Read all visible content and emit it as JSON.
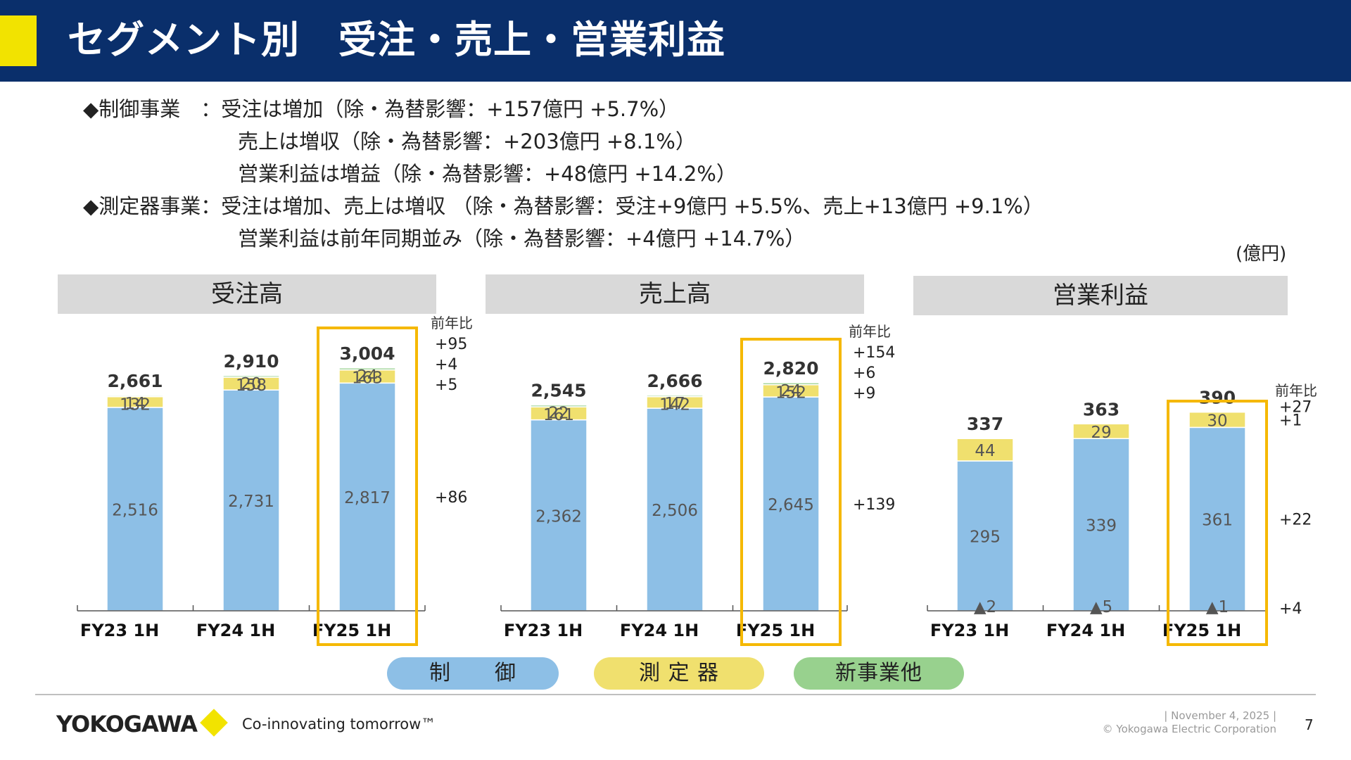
{
  "title": "セグメント別　受注・売上・営業利益",
  "summary": [
    "◆制御事業　：受注は増加（除・為替影響：+157億円 +5.7%）",
    "売上は増収（除・為替影響：+203億円 +8.1%）",
    "営業利益は増益（除・為替影響：+48億円 +14.2%）",
    "◆測定器事業：受注は増加、売上は増収 （除・為替影響：受注+9億円 +5.5%、売上+13億円 +9.1%）",
    "営業利益は前年同期並み（除・為替影響：+4億円 +14.7%）"
  ],
  "unit_label": "(億円)",
  "legend": [
    {
      "label": "制　　御",
      "color": "#8dbfe6"
    },
    {
      "label": "測 定 器",
      "color": "#f0e06e"
    },
    {
      "label": "新事業他",
      "color": "#98d18e"
    }
  ],
  "colors": {
    "header_bg": "#0a2f6b",
    "accent": "#f2e300",
    "control": "#8dbfe6",
    "measure": "#f0e06e",
    "new_business": "#98d18e",
    "highlight": "#f5b800",
    "panel_bg": "#d9d9d9",
    "label_text": "#555555"
  },
  "chart_data": [
    {
      "type": "bar",
      "stacked": true,
      "title": "受注高",
      "categories": [
        "FY23 1H",
        "FY24 1H",
        "FY25 1H"
      ],
      "series": [
        {
          "name": "新事業他",
          "values": [
            null,
            null,
            null
          ],
          "labels": [
            null,
            null,
            null
          ]
        },
        {
          "name": "制御",
          "values": [
            2516,
            2731,
            2817
          ],
          "labels": [
            "2,516",
            "2,731",
            "2,817"
          ]
        },
        {
          "name": "測定器",
          "values": [
            132,
            158,
            163
          ],
          "labels": [
            "132",
            "158",
            "163"
          ]
        },
        {
          "name": "新事業他",
          "values": [
            14,
            20,
            24
          ],
          "labels": [
            "14",
            "20",
            "24"
          ]
        }
      ],
      "totals": [
        2661,
        2910,
        3004
      ],
      "total_labels": [
        "2,661",
        "2,910",
        "3,004"
      ],
      "yoy_header": "前年比",
      "yoy": [
        {
          "series": "合計",
          "value": "+95"
        },
        {
          "series": "新事業他",
          "value": "+4"
        },
        {
          "series": "測定器",
          "value": "+5"
        },
        {
          "series": "制御",
          "value": "+86"
        }
      ],
      "highlight": "FY25 1H"
    },
    {
      "type": "bar",
      "stacked": true,
      "title": "売上高",
      "categories": [
        "FY23 1H",
        "FY24 1H",
        "FY25 1H"
      ],
      "series": [
        {
          "name": "新事業他",
          "values": [
            null,
            null,
            null
          ],
          "labels": [
            null,
            null,
            null
          ]
        },
        {
          "name": "制御",
          "values": [
            2362,
            2506,
            2645
          ],
          "labels": [
            "2,362",
            "2,506",
            "2,645"
          ]
        },
        {
          "name": "測定器",
          "values": [
            161,
            142,
            152
          ],
          "labels": [
            "161",
            "142",
            "152"
          ]
        },
        {
          "name": "新事業他",
          "values": [
            22,
            17,
            24
          ],
          "labels": [
            "22",
            "17",
            "24"
          ]
        }
      ],
      "totals": [
        2545,
        2666,
        2820
      ],
      "total_labels": [
        "2,545",
        "2,666",
        "2,820"
      ],
      "yoy_header": "前年比",
      "yoy": [
        {
          "series": "合計",
          "value": "+154"
        },
        {
          "series": "新事業他",
          "value": "+6"
        },
        {
          "series": "測定器",
          "value": "+9"
        },
        {
          "series": "制御",
          "value": "+139"
        }
      ],
      "highlight": "FY25 1H"
    },
    {
      "type": "bar",
      "stacked": true,
      "title": "営業利益",
      "categories": [
        "FY23 1H",
        "FY24 1H",
        "FY25 1H"
      ],
      "series": [
        {
          "name": "新事業他",
          "values": [
            -2,
            -5,
            -1
          ],
          "labels": [
            "▲2",
            "▲5",
            "▲1"
          ]
        },
        {
          "name": "制御",
          "values": [
            295,
            339,
            361
          ],
          "labels": [
            "295",
            "339",
            "361"
          ]
        },
        {
          "name": "測定器",
          "values": [
            44,
            29,
            30
          ],
          "labels": [
            "44",
            "29",
            "30"
          ]
        },
        {
          "name": "新事業他",
          "values": [
            null,
            null,
            null
          ],
          "labels": [
            null,
            null,
            null
          ]
        }
      ],
      "totals": [
        337,
        363,
        390
      ],
      "total_labels": [
        "337",
        "363",
        "390"
      ],
      "yoy_header": "前年比",
      "yoy": [
        {
          "series": "合計",
          "value": "+27"
        },
        {
          "series": "測定器",
          "value": "+1"
        },
        {
          "series": "制御",
          "value": "+22"
        },
        {
          "series": "新事業他",
          "value": "+4"
        }
      ],
      "highlight": "FY25 1H"
    }
  ],
  "footer": {
    "logo": "YOKOGAWA",
    "tagline": "Co-innovating tomorrow™",
    "date": "| November 4, 2025 |",
    "copyright": "© Yokogawa Electric Corporation",
    "page": "7"
  }
}
